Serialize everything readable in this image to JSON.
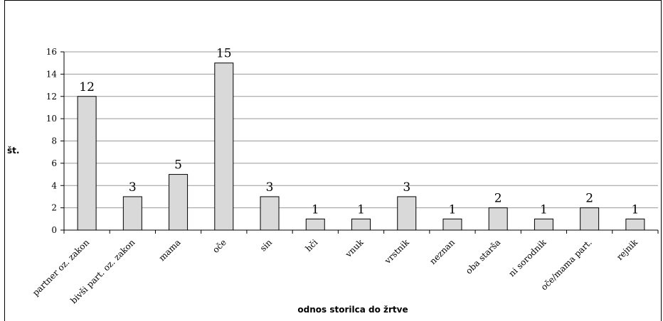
{
  "chart_data": {
    "type": "bar",
    "title": "",
    "xlabel": "odnos storilca do žrtve",
    "ylabel": "št.",
    "ylim": [
      0,
      16
    ],
    "yticks": [
      0,
      2,
      4,
      6,
      8,
      10,
      12,
      14,
      16
    ],
    "grid": "horizontal",
    "categories": [
      "partner oz. zakon",
      "bivši part. oz. zakon",
      "mama",
      "oče",
      "sin",
      "hči",
      "vnuk",
      "vrstnik",
      "neznan",
      "oba starša",
      "ni sorodnik",
      "oče/mama part.",
      "rejnik"
    ],
    "values": [
      12,
      3,
      5,
      15,
      3,
      1,
      1,
      3,
      1,
      2,
      1,
      2,
      1
    ],
    "bar_color": "#d9d9d9",
    "bar_stroke": "#000000",
    "grid_color": "#999999"
  }
}
